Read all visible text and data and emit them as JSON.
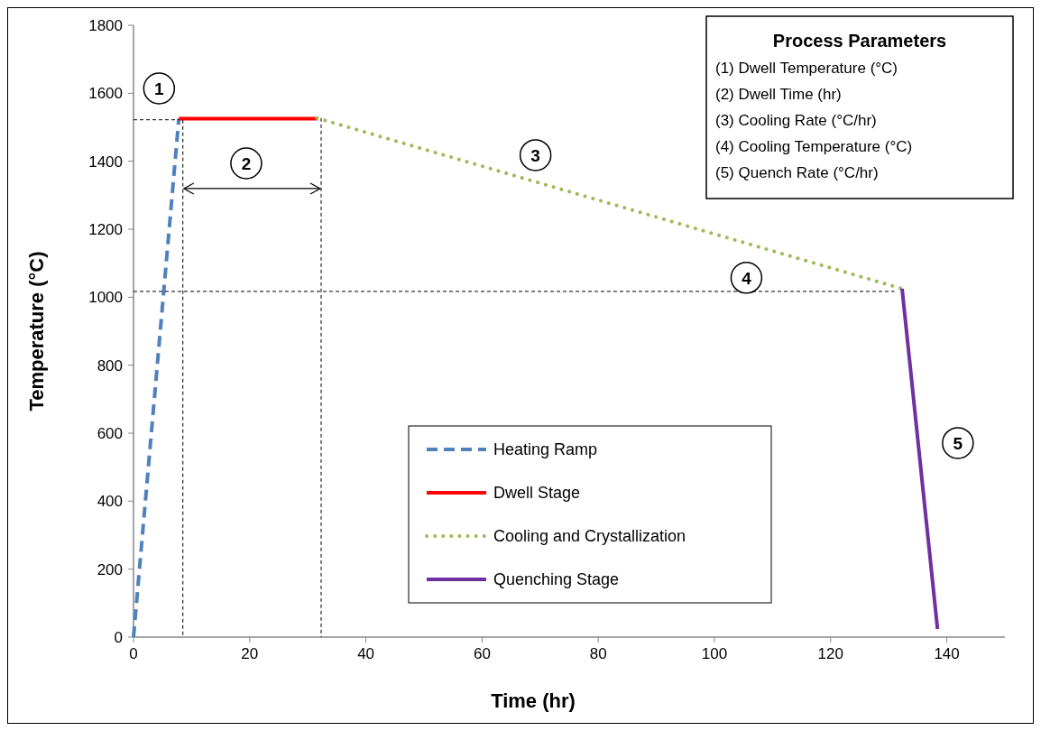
{
  "chart_data": {
    "type": "line",
    "xlabel": "Time (hr)",
    "ylabel": "Temperature (°C)",
    "xlim": [
      0,
      150
    ],
    "ylim": [
      0,
      1800
    ],
    "xticks": [
      0,
      20,
      40,
      60,
      80,
      100,
      120,
      140
    ],
    "yticks": [
      0,
      200,
      400,
      600,
      800,
      1000,
      1200,
      1400,
      1600,
      1800
    ],
    "grid": false,
    "legend": "bottom",
    "marker": "none",
    "series": [
      {
        "name": "Heating Ramp",
        "color": "#4f81bd",
        "line_style": "dashed",
        "x": [
          0,
          7.8
        ],
        "values": [
          0,
          1525
        ]
      },
      {
        "name": "Dwell Stage",
        "color": "#ff0000",
        "line_style": "solid",
        "x": [
          7.8,
          31.6
        ],
        "values": [
          1525,
          1525
        ]
      },
      {
        "name": "Cooling and Crystallization",
        "color": "#9bbb59",
        "line_style": "dotted",
        "x": [
          31.6,
          132.3
        ],
        "values": [
          1527,
          1025
        ]
      },
      {
        "name": "Quenching Stage",
        "color": "#7030a0",
        "line_style": "solid",
        "x": [
          132.3,
          138.4
        ],
        "values": [
          1025,
          24
        ]
      },
      {
        "color": "#000000",
        "line_style": "dashed",
        "x": [
          0,
          7.8
        ],
        "values": [
          1522,
          1522
        ]
      },
      {
        "color": "#000000",
        "line_style": "dashed",
        "x": [
          8.5,
          8.5
        ],
        "values": [
          1522,
          0
        ]
      },
      {
        "color": "#000000",
        "line_style": "dashed",
        "x": [
          32.3,
          32.3
        ],
        "values": [
          1527,
          0
        ]
      },
      {
        "color": "#000000",
        "line_style": "dashed",
        "x": [
          0,
          131
        ],
        "values": [
          1017,
          1017
        ]
      }
    ],
    "annotations": [
      {
        "text": "1",
        "x": 4.4,
        "y": 1614
      },
      {
        "text": "2",
        "x": 19.4,
        "y": 1394
      },
      {
        "text": "3",
        "x": 69.2,
        "y": 1418
      },
      {
        "text": "4",
        "x": 105.5,
        "y": 1057
      },
      {
        "text": "5",
        "x": 141.9,
        "y": 571
      },
      "Process Parameters",
      "(1) Dwell Temperature (°C)",
      "(2) Dwell Time (hr)",
      "(3) Cooling Rate (°C/hr)",
      "(4) Cooling Temperature (°C)",
      "(5) Quench Rate (°C/hr)"
    ]
  }
}
